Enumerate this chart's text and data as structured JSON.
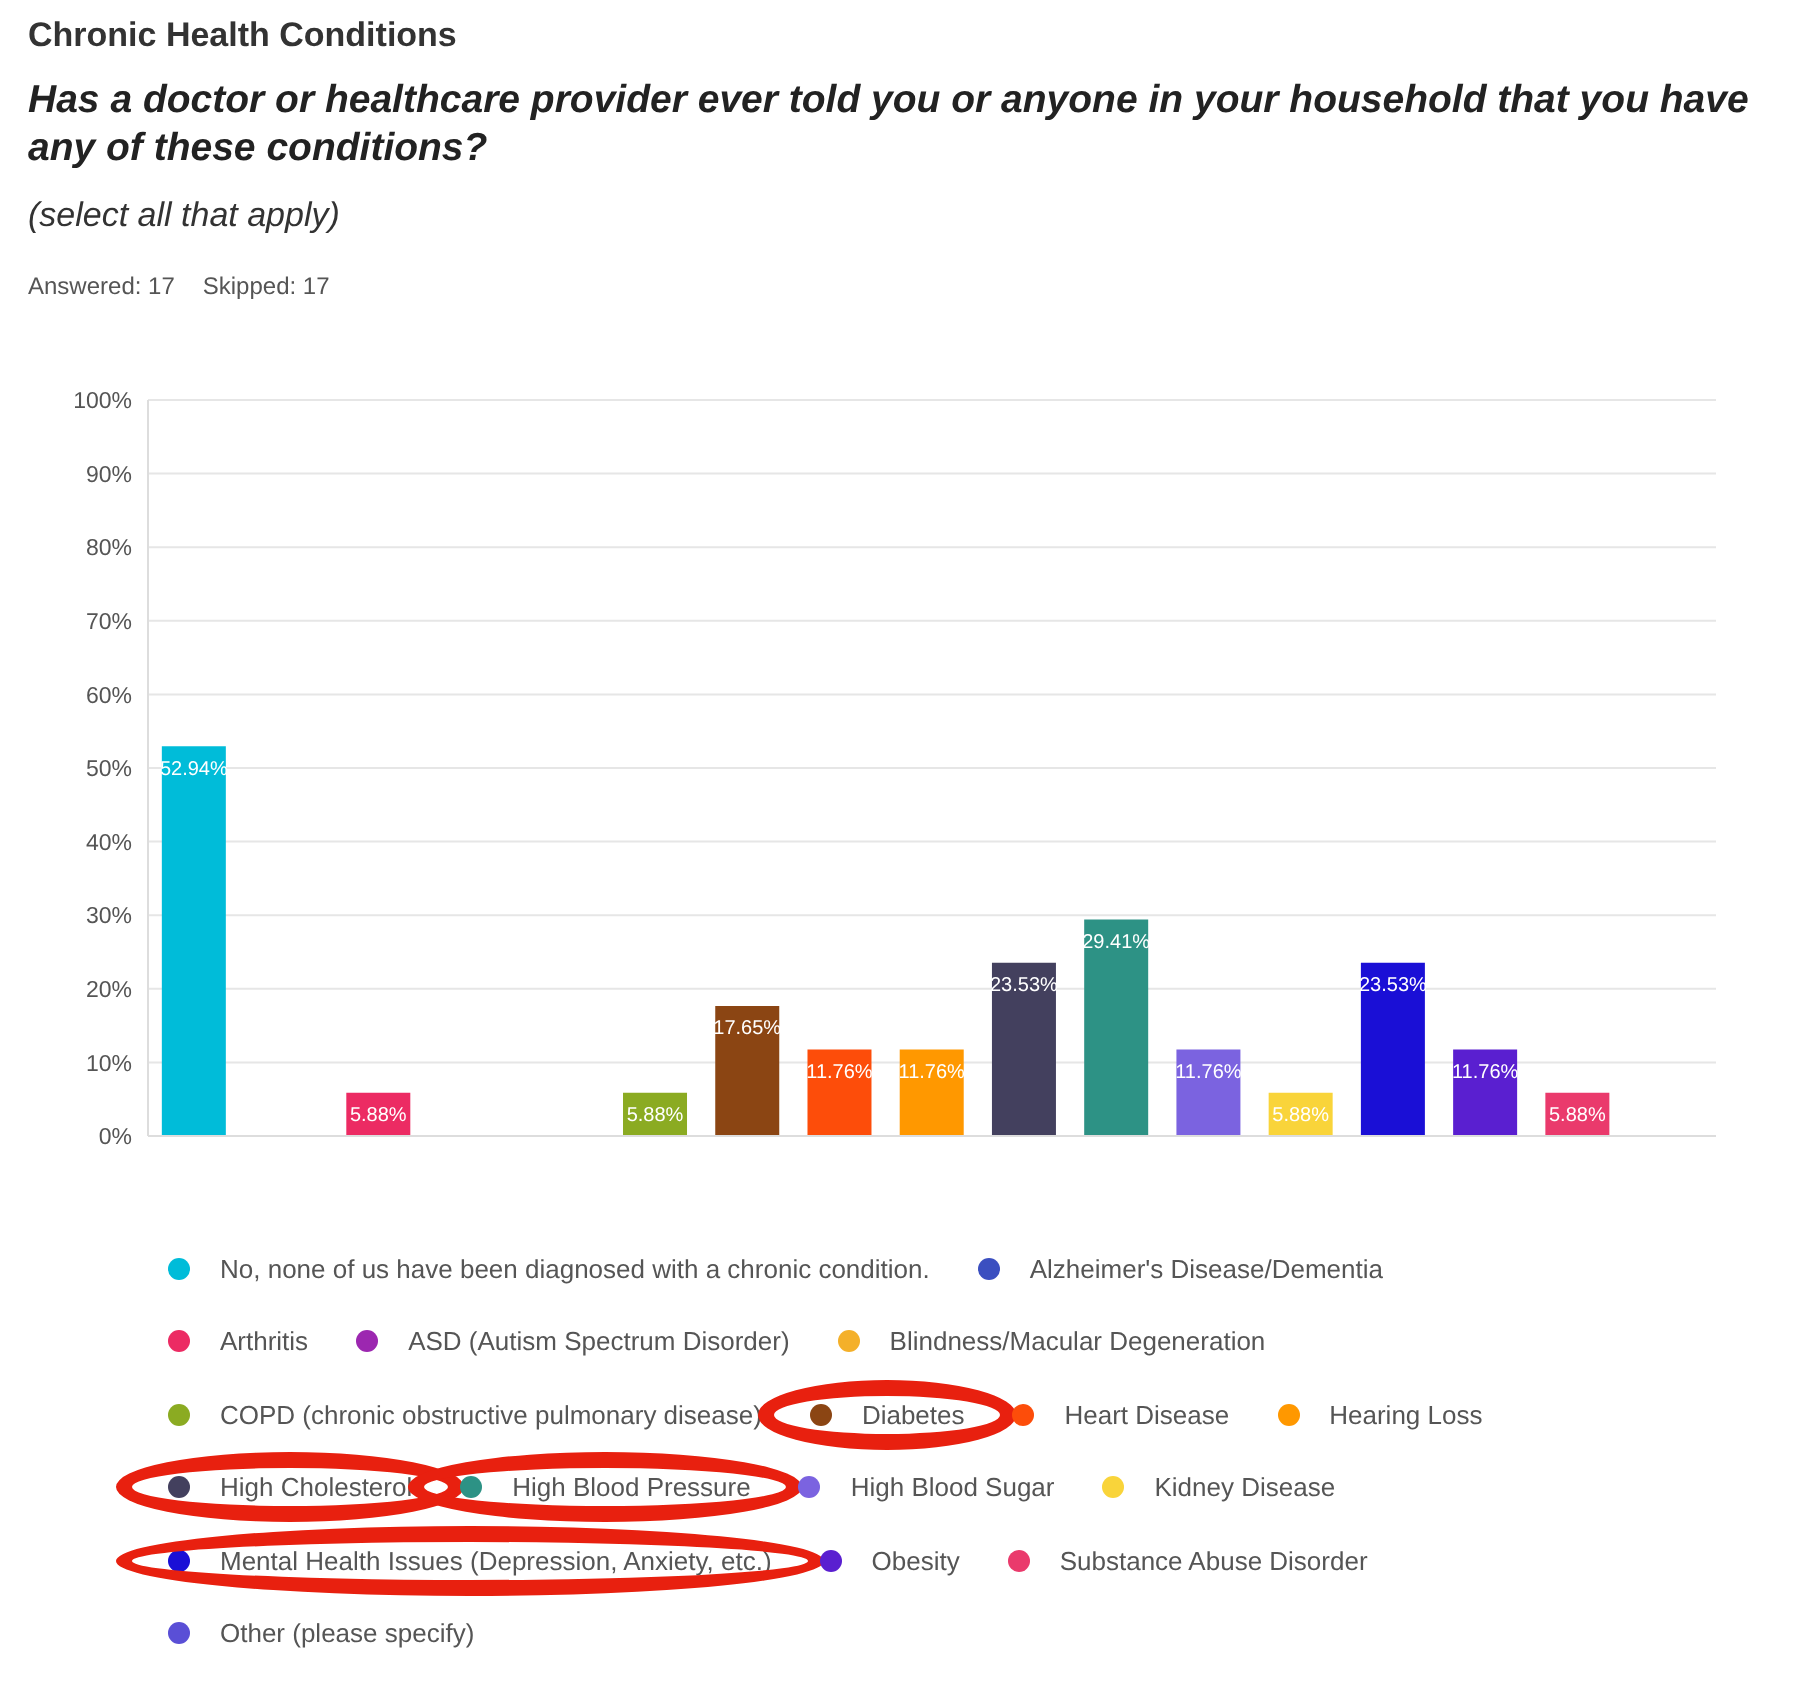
{
  "chart_data": {
    "type": "bar",
    "title": "Chronic Health Conditions",
    "subtitle": "Has a doctor or healthcare provider ever told you or anyone in your household that you have any of these conditions?",
    "annotations": [
      "(select all that apply)",
      "Answered: 17",
      "Skipped: 17"
    ],
    "categories": [
      null,
      null,
      null,
      null,
      null,
      null,
      null,
      null,
      null,
      null,
      null,
      null,
      null,
      null,
      null,
      null,
      null
    ],
    "series": [
      {
        "name": "No, none of us have been diagnosed with a chronic condition.",
        "color": "#00bcd9",
        "values": [
          52.94,
          null,
          null,
          null,
          null,
          null,
          null,
          null,
          null,
          null,
          null,
          null,
          null,
          null,
          null,
          null,
          null
        ],
        "value_labels": [
          "52.94%",
          null,
          null,
          null,
          null,
          null,
          null,
          null,
          null,
          null,
          null,
          null,
          null,
          null,
          null,
          null,
          null
        ]
      },
      {
        "name": "Alzheimer's Disease/Dementia",
        "color": "#3b4fc0",
        "values": [
          null,
          0,
          null,
          null,
          null,
          null,
          null,
          null,
          null,
          null,
          null,
          null,
          null,
          null,
          null,
          null,
          null
        ]
      },
      {
        "name": "Arthritis",
        "color": "#ec2b63",
        "values": [
          null,
          null,
          5.88,
          null,
          null,
          null,
          null,
          null,
          null,
          null,
          null,
          null,
          null,
          null,
          null,
          null,
          null
        ],
        "value_labels": [
          null,
          null,
          "5.88%",
          null,
          null,
          null,
          null,
          null,
          null,
          null,
          null,
          null,
          null,
          null,
          null,
          null,
          null
        ]
      },
      {
        "name": "ASD (Autism Spectrum Disorder)",
        "color": "#9c27b0",
        "values": [
          null,
          null,
          null,
          0,
          null,
          null,
          null,
          null,
          null,
          null,
          null,
          null,
          null,
          null,
          null,
          null,
          null
        ]
      },
      {
        "name": "Blindness/Macular Degeneration",
        "color": "#f4b02a",
        "values": [
          null,
          null,
          null,
          null,
          0,
          null,
          null,
          null,
          null,
          null,
          null,
          null,
          null,
          null,
          null,
          null,
          null
        ]
      },
      {
        "name": "COPD (chronic obstructive pulmonary disease)",
        "color": "#8bab22",
        "values": [
          null,
          null,
          null,
          null,
          null,
          5.88,
          null,
          null,
          null,
          null,
          null,
          null,
          null,
          null,
          null,
          null,
          null
        ],
        "value_labels": [
          null,
          null,
          null,
          null,
          null,
          "5.88%",
          null,
          null,
          null,
          null,
          null,
          null,
          null,
          null,
          null,
          null,
          null
        ]
      },
      {
        "name": "Diabetes",
        "color": "#8b4513",
        "values": [
          null,
          null,
          null,
          null,
          null,
          null,
          17.65,
          null,
          null,
          null,
          null,
          null,
          null,
          null,
          null,
          null,
          null
        ],
        "value_labels": [
          null,
          null,
          null,
          null,
          null,
          null,
          "17.65%",
          null,
          null,
          null,
          null,
          null,
          null,
          null,
          null,
          null,
          null
        ]
      },
      {
        "name": "Heart Disease",
        "color": "#fd4d0a",
        "values": [
          null,
          null,
          null,
          null,
          null,
          null,
          null,
          11.76,
          null,
          null,
          null,
          null,
          null,
          null,
          null,
          null,
          null
        ],
        "value_labels": [
          null,
          null,
          null,
          null,
          null,
          null,
          null,
          "11.76%",
          null,
          null,
          null,
          null,
          null,
          null,
          null,
          null,
          null
        ]
      },
      {
        "name": "Hearing Loss",
        "color": "#ff9800",
        "values": [
          null,
          null,
          null,
          null,
          null,
          null,
          null,
          null,
          11.76,
          null,
          null,
          null,
          null,
          null,
          null,
          null,
          null
        ],
        "value_labels": [
          null,
          null,
          null,
          null,
          null,
          null,
          null,
          null,
          "11.76%",
          null,
          null,
          null,
          null,
          null,
          null,
          null,
          null
        ]
      },
      {
        "name": "High Cholesterol",
        "color": "#43405e",
        "values": [
          null,
          null,
          null,
          null,
          null,
          null,
          null,
          null,
          null,
          23.53,
          null,
          null,
          null,
          null,
          null,
          null,
          null
        ],
        "value_labels": [
          null,
          null,
          null,
          null,
          null,
          null,
          null,
          null,
          null,
          "23.53%",
          null,
          null,
          null,
          null,
          null,
          null,
          null
        ]
      },
      {
        "name": "High Blood Pressure",
        "color": "#2d9285",
        "values": [
          null,
          null,
          null,
          null,
          null,
          null,
          null,
          null,
          null,
          null,
          29.41,
          null,
          null,
          null,
          null,
          null,
          null
        ],
        "value_labels": [
          null,
          null,
          null,
          null,
          null,
          null,
          null,
          null,
          null,
          null,
          "29.41%",
          null,
          null,
          null,
          null,
          null,
          null
        ]
      },
      {
        "name": "High Blood Sugar",
        "color": "#7b63e0",
        "values": [
          null,
          null,
          null,
          null,
          null,
          null,
          null,
          null,
          null,
          null,
          null,
          11.76,
          null,
          null,
          null,
          null,
          null
        ],
        "value_labels": [
          null,
          null,
          null,
          null,
          null,
          null,
          null,
          null,
          null,
          null,
          null,
          "11.76%",
          null,
          null,
          null,
          null,
          null
        ]
      },
      {
        "name": "Kidney Disease",
        "color": "#f9d43a",
        "values": [
          null,
          null,
          null,
          null,
          null,
          null,
          null,
          null,
          null,
          null,
          null,
          null,
          5.88,
          null,
          null,
          null,
          null
        ],
        "value_labels": [
          null,
          null,
          null,
          null,
          null,
          null,
          null,
          null,
          null,
          null,
          null,
          null,
          "5.88%",
          null,
          null,
          null,
          null
        ]
      },
      {
        "name": "Mental Health Issues (Depression, Anxiety, etc.)",
        "color": "#1a0fd6",
        "values": [
          null,
          null,
          null,
          null,
          null,
          null,
          null,
          null,
          null,
          null,
          null,
          null,
          null,
          23.53,
          null,
          null,
          null
        ],
        "value_labels": [
          null,
          null,
          null,
          null,
          null,
          null,
          null,
          null,
          null,
          null,
          null,
          null,
          null,
          "23.53%",
          null,
          null,
          null
        ]
      },
      {
        "name": "Obesity",
        "color": "#5a1fd0",
        "values": [
          null,
          null,
          null,
          null,
          null,
          null,
          null,
          null,
          null,
          null,
          null,
          null,
          null,
          null,
          11.76,
          null,
          null
        ],
        "value_labels": [
          null,
          null,
          null,
          null,
          null,
          null,
          null,
          null,
          null,
          null,
          null,
          null,
          null,
          null,
          "11.76%",
          null,
          null
        ]
      },
      {
        "name": "Substance Abuse Disorder",
        "color": "#ea3a6c",
        "values": [
          null,
          null,
          null,
          null,
          null,
          null,
          null,
          null,
          null,
          null,
          null,
          null,
          null,
          null,
          null,
          5.88,
          null
        ],
        "value_labels": [
          null,
          null,
          null,
          null,
          null,
          null,
          null,
          null,
          null,
          null,
          null,
          null,
          null,
          null,
          null,
          "5.88%",
          null
        ]
      },
      {
        "name": "Other (please specify)",
        "color": "#5a4fd6",
        "values": [
          null,
          null,
          null,
          null,
          null,
          null,
          null,
          null,
          null,
          null,
          null,
          null,
          null,
          null,
          null,
          null,
          0
        ]
      }
    ],
    "ylim": [
      0,
      100
    ],
    "yticks": [
      {
        "value": 0,
        "label": "0%"
      },
      {
        "value": 10,
        "label": "10%"
      },
      {
        "value": 20,
        "label": "20%"
      },
      {
        "value": 30,
        "label": "30%"
      },
      {
        "value": 40,
        "label": "40%"
      },
      {
        "value": 50,
        "label": "50%"
      },
      {
        "value": 60,
        "label": "60%"
      },
      {
        "value": 70,
        "label": "70%"
      },
      {
        "value": 80,
        "label": "80%"
      },
      {
        "value": 90,
        "label": "90%"
      },
      {
        "value": 100,
        "label": "100%"
      }
    ],
    "grid": "y",
    "legend": "bottom",
    "tick_labels": "y"
  }
}
